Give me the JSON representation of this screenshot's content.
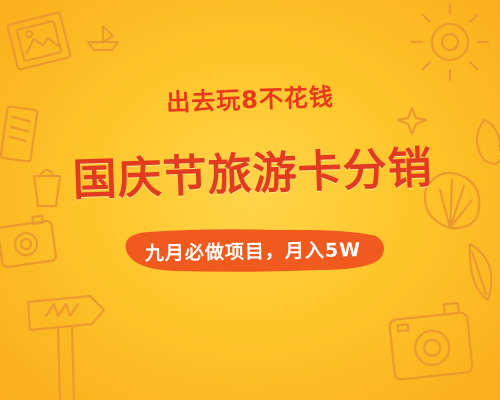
{
  "banner": {
    "tagline": "出去玩8不花钱",
    "headline": "国庆节旅游卡分销",
    "subline": "九月必做项目，月入5W"
  },
  "colors": {
    "background": "#ffc62a",
    "headline": "#e23b1f",
    "subline_blob": "#f05a1e",
    "doodle_stroke": "#e8952a"
  }
}
